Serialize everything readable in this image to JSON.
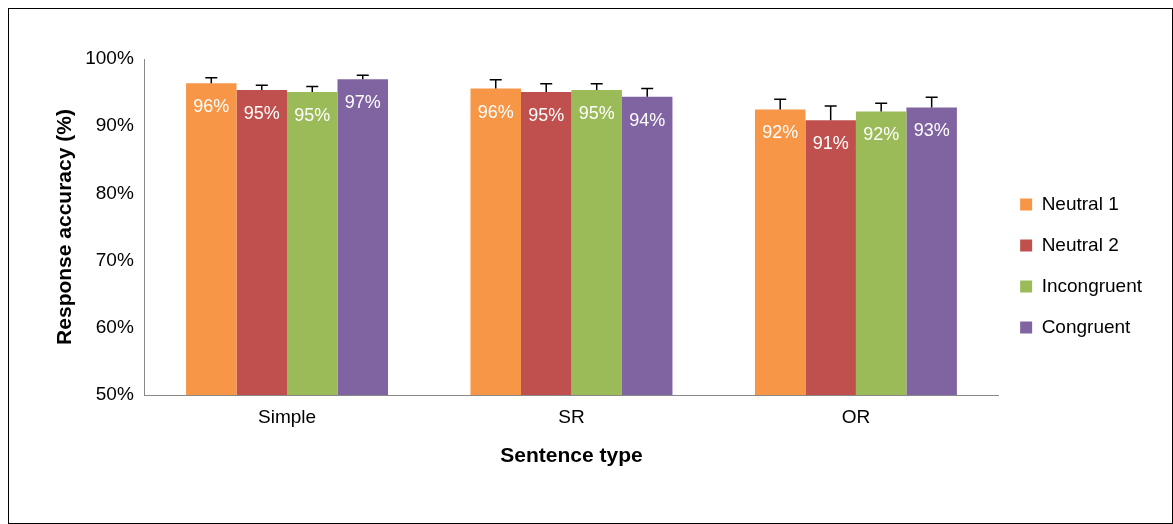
{
  "chart_data": {
    "type": "bar",
    "xlabel": "Sentence type",
    "ylabel": "Response accuracy (%)",
    "categories": [
      "Simple",
      "SR",
      "OR"
    ],
    "series": [
      {
        "name": "Neutral 1",
        "color": "#f79646",
        "values": [
          96.4,
          95.6,
          92.5
        ],
        "errors": [
          [
            96.4,
            97.2
          ],
          [
            95.6,
            96.9
          ],
          [
            92.5,
            94.0
          ]
        ],
        "value_labels": [
          "96%",
          "96%",
          "92%"
        ]
      },
      {
        "name": "Neutral 2",
        "color": "#c0504d",
        "values": [
          95.4,
          95.1,
          90.9
        ],
        "errors": [
          [
            95.4,
            96.1
          ],
          [
            95.1,
            96.3
          ],
          [
            90.9,
            93.0
          ]
        ],
        "value_labels": [
          "95%",
          "95%",
          "91%"
        ]
      },
      {
        "name": "Incongruent",
        "color": "#9bbb59",
        "values": [
          95.1,
          95.4,
          92.2
        ],
        "errors": [
          [
            95.1,
            95.9
          ],
          [
            95.4,
            96.3
          ],
          [
            92.2,
            93.4
          ]
        ],
        "value_labels": [
          "95%",
          "95%",
          "92%"
        ]
      },
      {
        "name": "Congruent",
        "color": "#8064a2",
        "values": [
          97.0,
          94.4,
          92.8
        ],
        "errors": [
          [
            97.0,
            97.6
          ],
          [
            94.4,
            95.6
          ],
          [
            92.8,
            94.3
          ]
        ],
        "value_labels": [
          "97%",
          "94%",
          "93%"
        ]
      }
    ],
    "ylim": [
      50,
      100
    ],
    "yticks": [
      {
        "value": 50,
        "label": "50%"
      },
      {
        "value": 60,
        "label": "60%"
      },
      {
        "value": 70,
        "label": "70%"
      },
      {
        "value": 80,
        "label": "80%"
      },
      {
        "value": 90,
        "label": "90%"
      },
      {
        "value": 100,
        "label": "100%"
      }
    ],
    "grid": false,
    "legend": "right"
  }
}
